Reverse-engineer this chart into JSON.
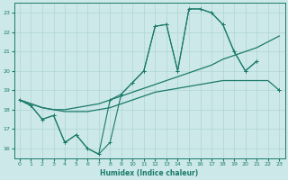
{
  "xlabel": "Humidex (Indice chaleur)",
  "xlim": [
    -0.5,
    23.5
  ],
  "ylim": [
    15.5,
    23.5
  ],
  "yticks": [
    16,
    17,
    18,
    19,
    20,
    21,
    22,
    23
  ],
  "xticks": [
    0,
    1,
    2,
    3,
    4,
    5,
    6,
    7,
    8,
    9,
    10,
    11,
    12,
    13,
    14,
    15,
    16,
    17,
    18,
    19,
    20,
    21,
    22,
    23
  ],
  "bg_color": "#cce8e8",
  "grid_color": "#b0d4d4",
  "line_color": "#1a7a6a",
  "jagged1": [
    18.5,
    18.2,
    17.5,
    17.7,
    16.3,
    16.7,
    16.0,
    15.7,
    16.3,
    18.8,
    19.4,
    20.0,
    22.3,
    22.4,
    20.0,
    23.2,
    23.2,
    23.0,
    22.4,
    21.0,
    20.0,
    20.5,
    null,
    19.0
  ],
  "jagged2": [
    18.5,
    18.2,
    17.5,
    17.7,
    16.3,
    16.7,
    16.0,
    15.7,
    18.5,
    18.8,
    19.4,
    20.0,
    22.3,
    22.4,
    20.0,
    23.2,
    23.2,
    23.0,
    22.4,
    21.0,
    20.0,
    20.5,
    null,
    19.0
  ],
  "smooth1": [
    18.5,
    18.3,
    18.1,
    18.0,
    18.0,
    18.1,
    18.2,
    18.3,
    18.5,
    18.7,
    18.9,
    19.1,
    19.3,
    19.5,
    19.7,
    19.9,
    20.1,
    20.3,
    20.6,
    20.8,
    21.0,
    21.2,
    21.5,
    21.8
  ],
  "smooth2": [
    18.5,
    18.3,
    18.1,
    18.0,
    17.9,
    17.9,
    17.9,
    18.0,
    18.1,
    18.3,
    18.5,
    18.7,
    18.9,
    19.0,
    19.1,
    19.2,
    19.3,
    19.4,
    19.5,
    19.5,
    19.5,
    19.5,
    19.5,
    19.0
  ]
}
